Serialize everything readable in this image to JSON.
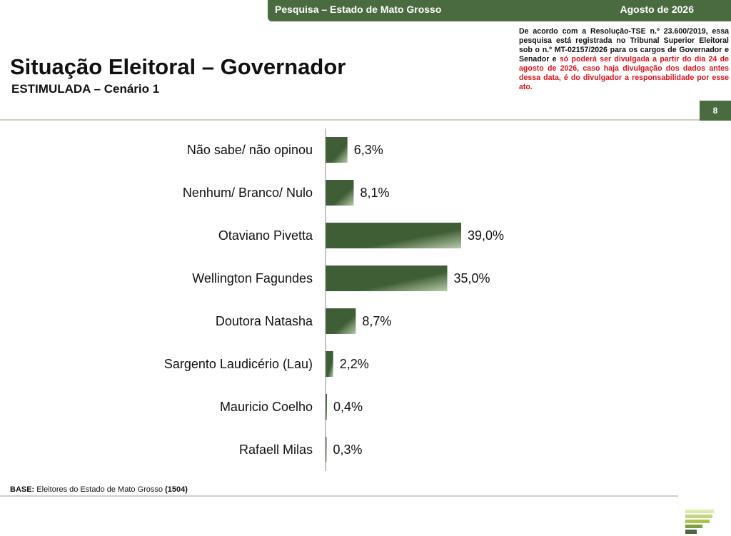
{
  "header": {
    "survey_label": "Pesquisa – Estado de Mato Grosso",
    "date_label": "Agosto de 2026",
    "page_number": "8"
  },
  "title": "Situação Eleitoral – Governador",
  "subtitle": "ESTIMULADA – Cenário 1",
  "legal": {
    "black_text": "De acordo com a Resolução-TSE n.º 23.600/2019, essa pesquisa está registrada no Tribunal Superior Eleitoral sob o n.º MT-02157/2026 para os cargos de Governador e Senador e",
    "red_text": "só poderá ser divulgada a partir do dia 24 de agosto de 2026, caso haja divulgação dos dados antes dessa data, é do divulgador a responsabilidade por esse ato."
  },
  "base": {
    "label": "BASE:",
    "text": "Eleitores do Estado de Mato Grosso",
    "count": "(1504)"
  },
  "colors": {
    "brand_green": "#4a6b40",
    "bar_dark": "#3f5e35",
    "bar_light": "#b7ccac",
    "legal_red": "#e0121a",
    "logo_light": "#d9ecaa",
    "logo_mid": "#a9c64b",
    "logo_dark": "#4a6b40"
  },
  "chart_data": {
    "type": "bar",
    "orientation": "horizontal",
    "categories": [
      "Não sabe/ não opinou",
      "Nenhum/ Branco/ Nulo",
      "Otaviano Pivetta",
      "Wellington Fagundes",
      "Doutora Natasha",
      "Sargento Laudicério (Lau)",
      "Mauricio Coelho",
      "Rafaell Milas"
    ],
    "values": [
      6.3,
      8.1,
      39.0,
      35.0,
      8.7,
      2.2,
      0.4,
      0.3
    ],
    "value_labels": [
      "6,3%",
      "8,1%",
      "39,0%",
      "35,0%",
      "8,7%",
      "2,2%",
      "0,4%",
      "0,3%"
    ],
    "unit": "%",
    "xlim": [
      0,
      100
    ],
    "grid": false,
    "legend": false
  }
}
